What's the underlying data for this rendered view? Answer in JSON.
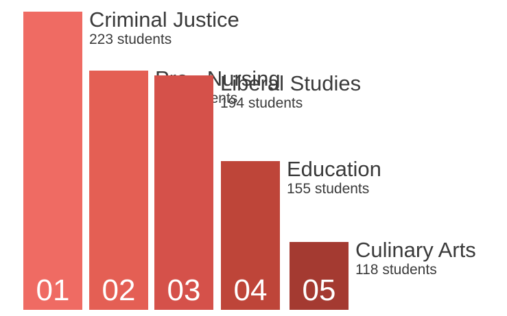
{
  "chart_data": {
    "type": "bar",
    "categories": [
      "Criminal Justice",
      "Pre - Nursing",
      "Liberal Studies",
      "Education",
      "Culinary Arts"
    ],
    "values": [
      223,
      196,
      194,
      155,
      118
    ],
    "ranks": [
      "01",
      "02",
      "03",
      "04",
      "05"
    ],
    "value_labels": [
      "223 students",
      "196 students",
      "194 students",
      "155 students",
      "118 students"
    ],
    "colors": [
      "#ef6b63",
      "#e45f54",
      "#d5514a",
      "#be4539",
      "#a43a31"
    ]
  }
}
